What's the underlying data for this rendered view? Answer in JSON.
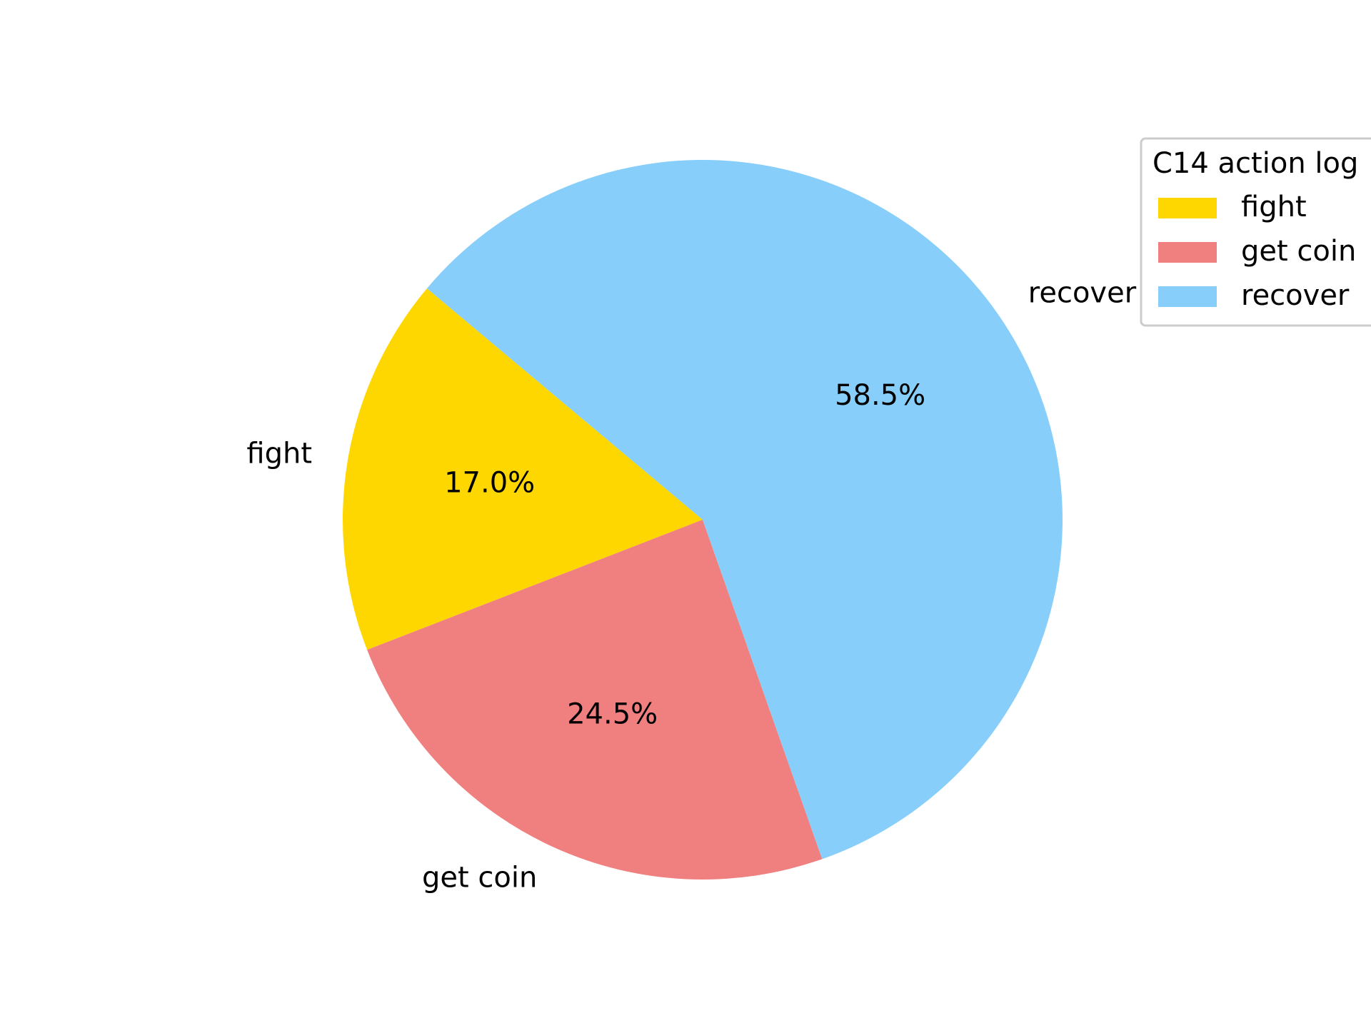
{
  "chart_data": {
    "type": "pie",
    "title": "",
    "start_angle_deg": 140,
    "direction": "counterclockwise",
    "slices": [
      {
        "label": "fight",
        "value": 17.0,
        "pct_text": "17.0%",
        "color": "#FFD700"
      },
      {
        "label": "get coin",
        "value": 24.5,
        "pct_text": "24.5%",
        "color": "#F08080"
      },
      {
        "label": "recover",
        "value": 58.5,
        "pct_text": "58.5%",
        "color": "#87CEFA"
      }
    ],
    "legend": {
      "title": "C14 action log",
      "placement": "top-right",
      "entries": [
        "fight",
        "get coin",
        "recover"
      ]
    }
  }
}
